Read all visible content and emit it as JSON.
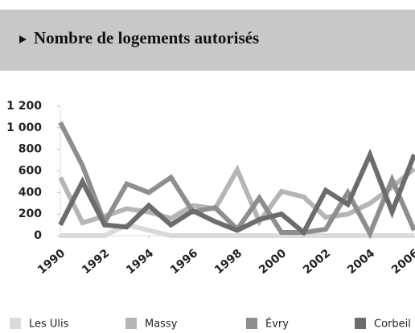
{
  "chart_data": {
    "type": "line",
    "title": "Nombre de logements autorisés",
    "x": [
      1990,
      1991,
      1992,
      1993,
      1994,
      1995,
      1996,
      1997,
      1998,
      1999,
      2000,
      2001,
      2002,
      2003,
      2004,
      2005,
      2006
    ],
    "xlim": [
      1990,
      2006
    ],
    "xticks": [
      1990,
      1992,
      1994,
      1996,
      1998,
      2000,
      2002,
      2004,
      2006
    ],
    "ylim": [
      0,
      1200
    ],
    "yticks": [
      0,
      200,
      400,
      600,
      800,
      {
        "value": 1000,
        "label": "1 000"
      },
      {
        "value": 1200,
        "label": "1 200"
      }
    ],
    "series": [
      {
        "name": "Les Ulis",
        "color": "#dadada",
        "values": [
          0,
          0,
          0,
          100,
          50,
          0,
          0,
          0,
          0,
          0,
          0,
          0,
          0,
          0,
          0,
          0,
          0
        ]
      },
      {
        "name": "Massy",
        "color": "#b5b5b5",
        "values": [
          540,
          120,
          180,
          250,
          220,
          160,
          280,
          250,
          610,
          130,
          410,
          360,
          170,
          200,
          300,
          450,
          620
        ]
      },
      {
        "name": "Évry",
        "color": "#8e8e8e",
        "values": [
          1050,
          650,
          120,
          480,
          400,
          540,
          220,
          260,
          60,
          350,
          30,
          30,
          60,
          400,
          20,
          520,
          50
        ]
      },
      {
        "name": "Corbeil",
        "color": "#6c6c6c",
        "values": [
          100,
          500,
          100,
          80,
          280,
          100,
          230,
          130,
          50,
          150,
          200,
          30,
          420,
          290,
          750,
          220,
          750
        ]
      }
    ],
    "legend": "bottom"
  }
}
